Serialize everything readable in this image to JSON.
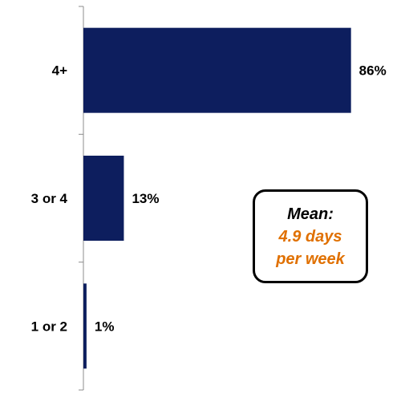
{
  "chart_data": {
    "type": "bar",
    "orientation": "horizontal",
    "categories": [
      "4+",
      "3 or 4",
      "1 or 2"
    ],
    "values": [
      86,
      13,
      1
    ],
    "value_labels": [
      "86%",
      "13%",
      "1%"
    ],
    "xlim": [
      0,
      100
    ],
    "grid": false,
    "bar_color": "#0d1e5e",
    "title": "",
    "xlabel": "",
    "ylabel": ""
  },
  "annotation": {
    "title": "Mean:",
    "line1": "4.9 days",
    "line2": "per week",
    "title_color": "#000000",
    "value_color": "#e07000"
  }
}
